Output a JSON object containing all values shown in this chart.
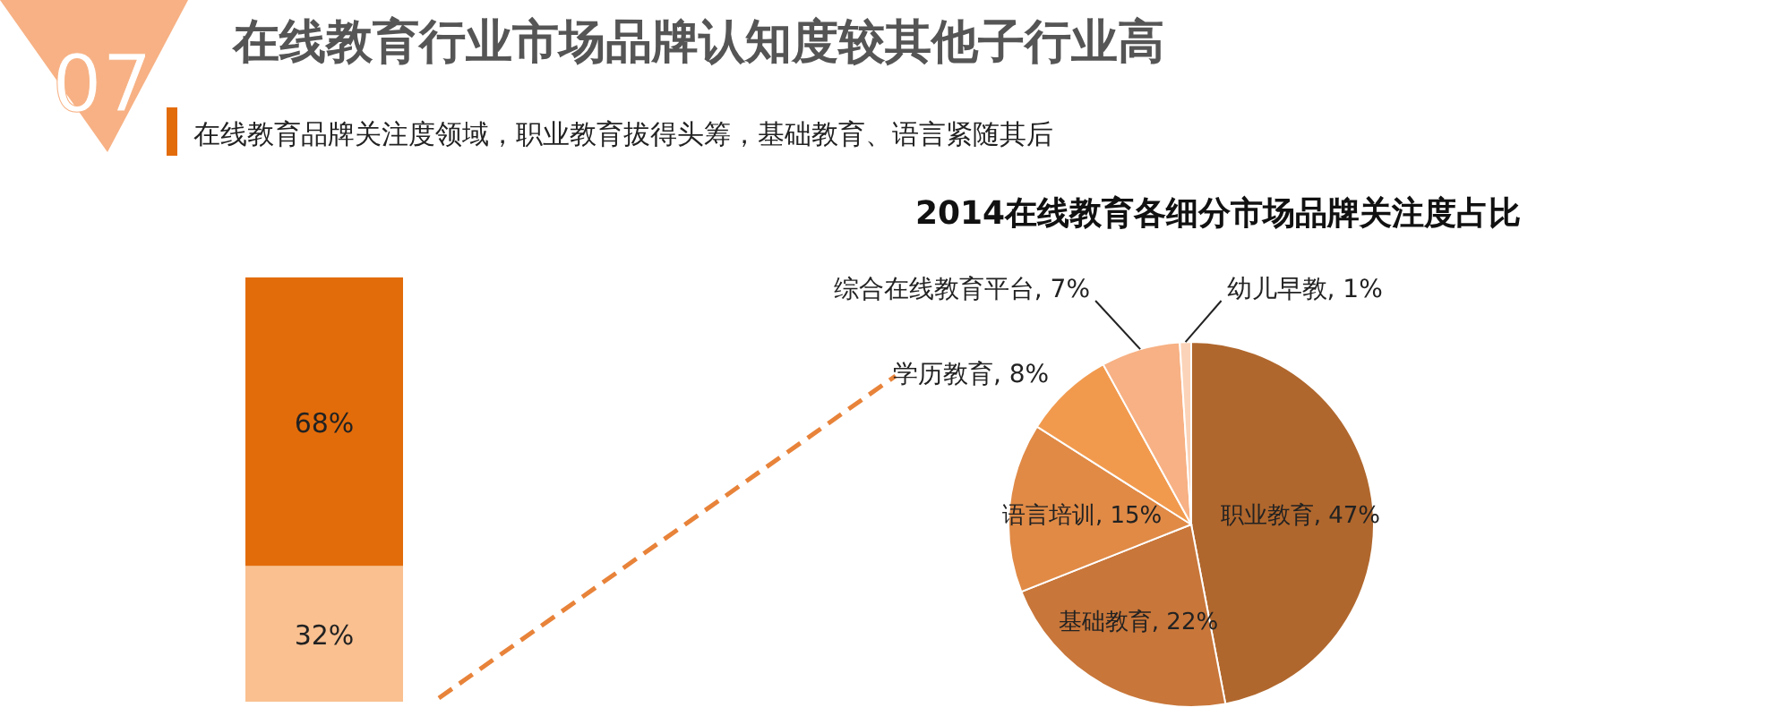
{
  "chart_data": [
    {
      "type": "bar",
      "title": "在线教育行业市场品牌认知度较其他子行业高",
      "subtitle": "在线教育品牌关注度领域，职业教育拔得头筹，基础教育、语言紧随其后",
      "annotations": [
        "07"
      ],
      "stacked": true,
      "categories": [
        null
      ],
      "ylim": [
        0,
        100
      ],
      "series": [
        {
          "color": "#fac090",
          "values": [
            32
          ],
          "value_labels": [
            "32%"
          ]
        },
        {
          "color": "#e36c0a",
          "values": [
            68
          ],
          "value_labels": [
            "68%"
          ]
        }
      ]
    },
    {
      "type": "pie",
      "title": "2014在线教育各细分市场品牌关注度占比",
      "categories": [
        "职业教育",
        "基础教育",
        "语言培训",
        "学历教育",
        "综合在线教育平台",
        "幼儿早教"
      ],
      "values": [
        47,
        22,
        15,
        8,
        7,
        1
      ],
      "value_labels": [
        "47%",
        "22%",
        "15%",
        "8%",
        "7%",
        "1%"
      ],
      "colors": [
        "#b0672d",
        "#c8763a",
        "#e08a46",
        "#f19a4e",
        "#f7b184",
        "#fbd3b8"
      ]
    }
  ]
}
